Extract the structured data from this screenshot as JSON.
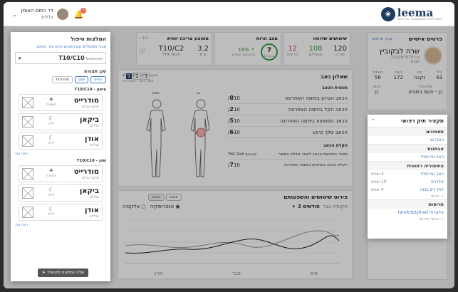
{
  "header": {
    "brand": "leema",
    "brand_tagline": "MEDICAL CANNABIS PLATFORM",
    "doctor_name": "דר כתום האומן",
    "doctor_specialty": "כללית",
    "notification_count": "5"
  },
  "personal": {
    "title": "פרטים אישיים",
    "edit_link": "ערוך פרטים",
    "name": "שרה לבקוביץ",
    "id_line": "ת.ז 725287073",
    "role": "מבוגר",
    "fields": [
      {
        "label": "גיל",
        "value": "43"
      },
      {
        "label": "מין",
        "value": "נקבה"
      },
      {
        "label": "גובה",
        "value": "172"
      },
      {
        "label": "משקל",
        "value": "56"
      }
    ],
    "fields2": [
      {
        "label": "אלכוהול",
        "value": "כן - פעם בשבוע"
      },
      {
        "label": "עישון",
        "value": "כן"
      }
    ]
  },
  "medical": {
    "title": "תקציר תיק רפואי",
    "sections": [
      {
        "title": "תסמינים",
        "items": [
          "כאבי גב"
        ]
      },
      {
        "title": "אבחנות",
        "items": [
          "כאב נוירופתי"
        ]
      },
      {
        "title": "היסטוריה רפואית",
        "items": [
          "כאב נוירופתי",
          "אלרגיה",
          "לחץ דם גבוה"
        ],
        "dates": [
          "4 שנים",
          "10 שנים",
          "4 שנים"
        ]
      },
      {
        "title": "תרופות",
        "items": [
          "אלטרול (amitriptyline)"
        ]
      }
    ],
    "add_label": "+ הוסף",
    "add_med_label": "+ הוסף תרופה"
  },
  "stats": {
    "usage": {
      "title": "שימושים שדווחו",
      "total": "120",
      "total_label": "סה\"כ",
      "effective": "108",
      "effective_label": "מועילים",
      "failed": "12",
      "failed_label": "חריגים"
    },
    "mood": {
      "title": "מצב הרוח",
      "score": "7",
      "score_label": "מתוך 10",
      "change": "18%",
      "change_label": "מהביקור אחרון"
    },
    "consumption": {
      "title": "ממוצע צריכה יומית",
      "page": "1/2",
      "strain": "T10/C2",
      "strain_label": "THC Rich",
      "amount": "3.2",
      "amount_label": "גרם"
    }
  },
  "questionnaire": {
    "title": "שאלון כאב",
    "date_label": "תאריך מילוי: 4/5/2021",
    "source_label": "אסף כאב - סטנדרטי",
    "pages": [
      "1",
      "2",
      "3"
    ],
    "section1": "חומרת הכאב",
    "questions": [
      {
        "text": "הכאב הגרוע ביממה האחרונה",
        "score": "8",
        "max": "10/"
      },
      {
        "text": "הכאב הקל ביממה האחרונה",
        "score": "2",
        "max": "10/"
      },
      {
        "text": "הכאב הממוצע ביממה האחרונה",
        "score": "5",
        "max": "10/"
      },
      {
        "text": "הכאב שלך כרגע",
        "score": "6",
        "max": "10/"
      }
    ],
    "section2": "הקלת הכאב",
    "questions2": [
      {
        "text": "שיפור בתחושת הכאב לאחר נטילת המוצר",
        "tag": "קנאביס",
        "tag2": "THC Rich"
      },
      {
        "text": "הקלת הכאב באחוזים ביממה האחרונה",
        "score": "7",
        "max": "10/"
      }
    ],
    "body_front": "פנים",
    "body_back": "גב"
  },
  "chart": {
    "title": "פירוט שימושים והשפעותם",
    "tabs": [
      "יציבות",
      "איפוק"
    ],
    "legend": [
      "אלקטיה",
      "אנטרוסקיה"
    ],
    "filter_label": "חודשים 3",
    "filter_prefix": "תקופת עבר",
    "x_labels": [
      "מרץ",
      "פבר",
      "מאי"
    ]
  },
  "recommend": {
    "title": "המלצות טיפול",
    "subtitle": "עבור מטופלים עם תחונים זהים עזר המינון:",
    "selected": "T10/C10",
    "selected_sub": "Balanced",
    "filter_title": "סנן תצורה",
    "filters": [
      "עישון",
      "שמן",
      "תפרחות"
    ],
    "groups": [
      {
        "title": "עישון - T10/C10",
        "cards": [
          {
            "name": "מודרייט",
            "sub": "תוקף עולם",
            "icon": "sun-icon",
            "time": "משמרה"
          },
          {
            "name": "ביקאן",
            "sub": "בוללת",
            "icon": "moon-icon",
            "time": "לילה"
          },
          {
            "name": "אודן",
            "sub": "בוללת",
            "icon": "moon-icon",
            "time": "לילה"
          }
        ],
        "more": "ראה עוד"
      },
      {
        "title": "שמן - T10/C10",
        "cards": [
          {
            "name": "מודרייט",
            "sub": "תוקף עולם",
            "icon": "sun-icon",
            "time": "משמרה"
          },
          {
            "name": "ביקאן",
            "sub": "בוללת",
            "icon": "moon-icon",
            "time": "לילה"
          },
          {
            "name": "אודן",
            "sub": "בוללת",
            "icon": "moon-icon",
            "time": "לילה"
          }
        ],
        "more": "ראה עוד"
      }
    ],
    "send_button": "שלח המלצות למטופל"
  }
}
